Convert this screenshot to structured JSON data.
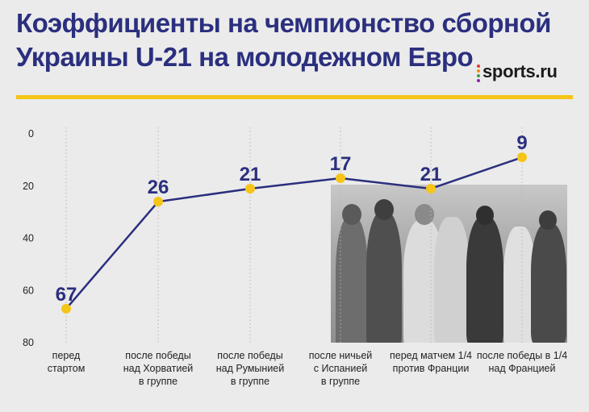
{
  "header": {
    "title_line1": "Коэффициенты на чемпионство сборной",
    "title_line2": "Украины U-21 на молодежном Евро",
    "brand": "sports.ru"
  },
  "colors": {
    "title": "#2b2f7e",
    "line": "#2b2f7e",
    "point": "#f5c518",
    "rule": "#f5c518",
    "background": "#ebebeb"
  },
  "chart_data": {
    "type": "line",
    "title": "Коэффициенты на чемпионство сборной Украины U-21 на молодежном Евро",
    "xlabel": "",
    "ylabel": "",
    "ylim": [
      0,
      80
    ],
    "y_inverted": true,
    "yticks": [
      "0",
      "20",
      "40",
      "60",
      "80"
    ],
    "grid": "vertical",
    "legend": "none",
    "categories": [
      [
        "перед",
        "стартом"
      ],
      [
        "после победы",
        "над Хорватией",
        "в группе"
      ],
      [
        "после победы",
        "над Румынией",
        "в группе"
      ],
      [
        "после ничьей",
        "с Испанией",
        "в группе"
      ],
      [
        "перед матчем 1/4",
        "против Франции"
      ],
      [
        "после победы в 1/4",
        "над Францией"
      ]
    ],
    "values": [
      67,
      26,
      21,
      17,
      21,
      9
    ],
    "data_labels": [
      "67",
      "26",
      "21",
      "17",
      "21",
      "9"
    ]
  }
}
